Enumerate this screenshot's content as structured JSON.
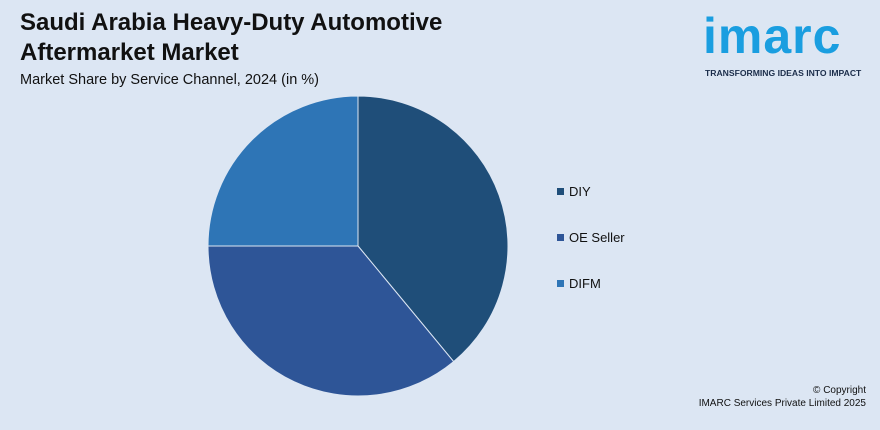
{
  "header": {
    "title": "Saudi Arabia Heavy-Duty Automotive Aftermarket Market",
    "subtitle": "Market Share by Service Channel, 2024 (in %)"
  },
  "logo": {
    "word": "imarc",
    "tagline": "TRANSFORMING IDEAS INTO IMPACT",
    "color": "#1a9ee0"
  },
  "chart_data": {
    "type": "pie",
    "title": "Saudi Arabia Heavy-Duty Automotive Aftermarket Market",
    "subtitle": "Market Share by Service Channel, 2024 (in %)",
    "categories": [
      "DIY",
      "OE Seller",
      "DIFM"
    ],
    "values": [
      39,
      36,
      25
    ],
    "colors": [
      "#1f4e79",
      "#2e5597",
      "#2e75b6"
    ],
    "legend_position": "right"
  },
  "footer": {
    "copyright_line1": "© Copyright",
    "copyright_line2": "IMARC Services Private Limited 2025"
  }
}
